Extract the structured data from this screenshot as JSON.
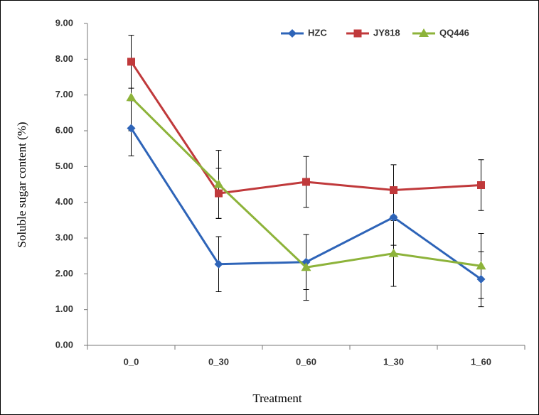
{
  "chart_data": {
    "type": "line",
    "x_label": "Treatment",
    "y_label": "Soluble sugar content (%)",
    "categories": [
      "0_0",
      "0_30",
      "0_60",
      "1_30",
      "1_60"
    ],
    "series": [
      {
        "name": "HZC",
        "color": "#2e64b8",
        "marker": "diamond",
        "values": [
          6.07,
          2.27,
          2.33,
          3.58,
          1.85
        ],
        "errors": [
          0.77,
          0.77,
          0.77,
          0.78,
          0.77
        ]
      },
      {
        "name": "JY818",
        "color": "#c0393b",
        "marker": "square",
        "values": [
          7.93,
          4.25,
          4.57,
          4.34,
          4.48
        ],
        "errors": [
          0.74,
          0.7,
          0.71,
          0.71,
          0.71
        ]
      },
      {
        "name": "QQ446",
        "color": "#8db33a",
        "marker": "triangle",
        "values": [
          6.93,
          4.5,
          2.18,
          2.57,
          2.22
        ],
        "errors": [
          0.93,
          0.95,
          0.92,
          0.92,
          0.91
        ]
      }
    ],
    "ylim": [
      0,
      9
    ],
    "yticks": [
      {
        "value": 0,
        "label": "0.00"
      },
      {
        "value": 1,
        "label": "1.00"
      },
      {
        "value": 2,
        "label": "2.00"
      },
      {
        "value": 3,
        "label": "3.00"
      },
      {
        "value": 4,
        "label": "4.00"
      },
      {
        "value": 5,
        "label": "5.00"
      },
      {
        "value": 6,
        "label": "6.00"
      },
      {
        "value": 7,
        "label": "7.00"
      },
      {
        "value": 8,
        "label": "8.00"
      },
      {
        "value": 9,
        "label": "9.00"
      }
    ],
    "grid": false,
    "legend": "top-right"
  }
}
